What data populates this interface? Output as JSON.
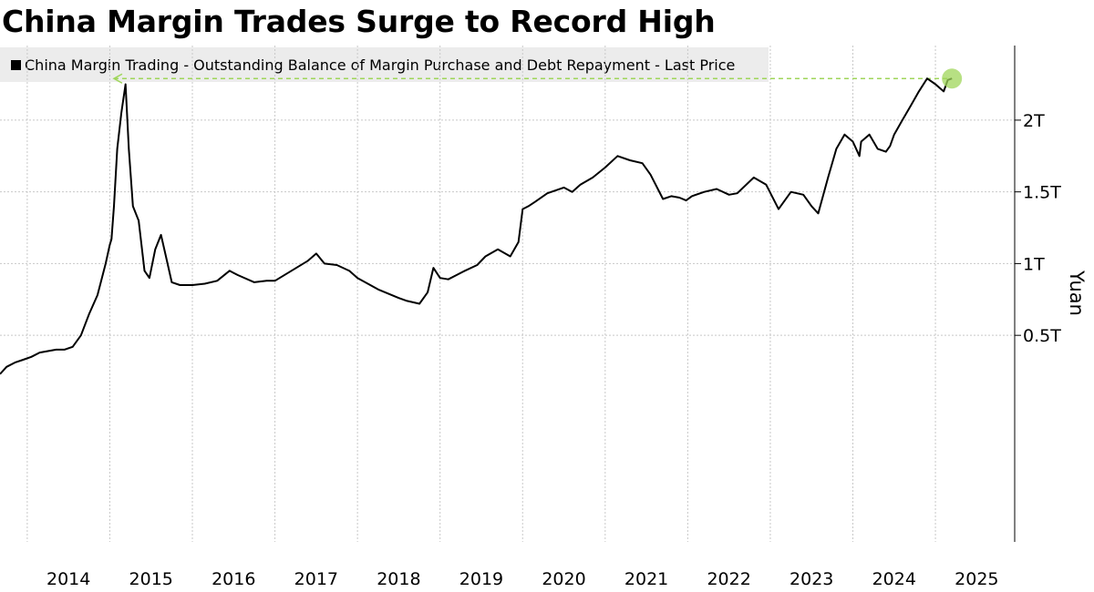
{
  "title": "China Margin Trades Surge to Record High",
  "legend": {
    "label": "China Margin Trading - Outstanding Balance of Margin Purchase and Debt Repayment - Last Price",
    "swatch_color": "#000000"
  },
  "colors": {
    "line": "#000000",
    "highlight": "#9fd65a",
    "grid": "#c8c8c8"
  },
  "chart_data": {
    "type": "line",
    "title": "China Margin Trades Surge to Record High",
    "xlabel": "",
    "ylabel": "Yuan",
    "y_axis_position": "right",
    "ylim": [
      -0.94,
      2.52
    ],
    "xlim": [
      2013.67,
      2025.96
    ],
    "y_ticks": [
      0.5,
      1.0,
      1.5,
      2.0
    ],
    "y_tick_labels": [
      "0.5T",
      "1T",
      "1.5T",
      "2T"
    ],
    "x_ticks": [
      2014,
      2015,
      2016,
      2017,
      2018,
      2019,
      2020,
      2021,
      2022,
      2023,
      2024,
      2025
    ],
    "x_tick_labels": [
      "2014",
      "2015",
      "2016",
      "2017",
      "2018",
      "2019",
      "2020",
      "2021",
      "2022",
      "2023",
      "2024",
      "2025"
    ],
    "grid": true,
    "legend_position": "top-left",
    "series": [
      {
        "name": "China Margin Trading - Outstanding Balance of Margin Purchase and Debt Repayment - Last Price",
        "unit": "trillion yuan",
        "x": [
          2013.67,
          2013.75,
          2013.85,
          2013.95,
          2014.05,
          2014.15,
          2014.25,
          2014.35,
          2014.45,
          2014.55,
          2014.65,
          2014.75,
          2014.85,
          2014.95,
          2015.0,
          2015.02,
          2015.05,
          2015.09,
          2015.14,
          2015.19,
          2015.23,
          2015.28,
          2015.35,
          2015.42,
          2015.48,
          2015.55,
          2015.62,
          2015.68,
          2015.75,
          2015.85,
          2016.0,
          2016.15,
          2016.3,
          2016.45,
          2016.55,
          2016.75,
          2016.9,
          2017.0,
          2017.2,
          2017.4,
          2017.5,
          2017.6,
          2017.75,
          2017.9,
          2018.0,
          2018.25,
          2018.5,
          2018.6,
          2018.75,
          2018.85,
          2018.92,
          2019.0,
          2019.1,
          2019.2,
          2019.3,
          2019.45,
          2019.55,
          2019.7,
          2019.85,
          2019.95,
          2020.0,
          2020.07,
          2020.15,
          2020.3,
          2020.5,
          2020.6,
          2020.7,
          2020.85,
          2021.0,
          2021.15,
          2021.3,
          2021.45,
          2021.55,
          2021.7,
          2021.8,
          2021.9,
          2021.98,
          2022.05,
          2022.2,
          2022.35,
          2022.5,
          2022.6,
          2022.8,
          2022.95,
          2023.1,
          2023.25,
          2023.4,
          2023.5,
          2023.58,
          2023.7,
          2023.8,
          2023.9,
          2024.0,
          2024.08,
          2024.1,
          2024.2,
          2024.3,
          2024.4,
          2024.45,
          2024.5,
          2024.6,
          2024.7,
          2024.8,
          2024.9,
          2025.0,
          2025.1,
          2025.15,
          2025.2
        ],
        "values": [
          0.23,
          0.28,
          0.31,
          0.33,
          0.35,
          0.38,
          0.39,
          0.4,
          0.4,
          0.42,
          0.5,
          0.65,
          0.78,
          1.0,
          1.13,
          1.17,
          1.4,
          1.8,
          2.05,
          2.25,
          1.8,
          1.4,
          1.3,
          0.95,
          0.9,
          1.1,
          1.2,
          1.05,
          0.87,
          0.85,
          0.85,
          0.86,
          0.88,
          0.95,
          0.92,
          0.87,
          0.88,
          0.88,
          0.95,
          1.02,
          1.07,
          1.0,
          0.99,
          0.95,
          0.9,
          0.82,
          0.76,
          0.74,
          0.72,
          0.8,
          0.97,
          0.9,
          0.89,
          0.92,
          0.95,
          0.99,
          1.05,
          1.1,
          1.05,
          1.15,
          1.38,
          1.4,
          1.43,
          1.49,
          1.53,
          1.5,
          1.55,
          1.6,
          1.67,
          1.75,
          1.72,
          1.7,
          1.62,
          1.45,
          1.47,
          1.46,
          1.44,
          1.47,
          1.5,
          1.52,
          1.48,
          1.49,
          1.6,
          1.55,
          1.38,
          1.5,
          1.48,
          1.4,
          1.35,
          1.6,
          1.8,
          1.9,
          1.85,
          1.75,
          1.85,
          1.9,
          1.8,
          1.78,
          1.82,
          1.9,
          2.0,
          2.1,
          2.2,
          2.29,
          2.25,
          2.2,
          2.28,
          2.29
        ]
      }
    ],
    "annotation": {
      "type": "record-high-marker",
      "x": 2025.2,
      "y": 2.29
    }
  }
}
